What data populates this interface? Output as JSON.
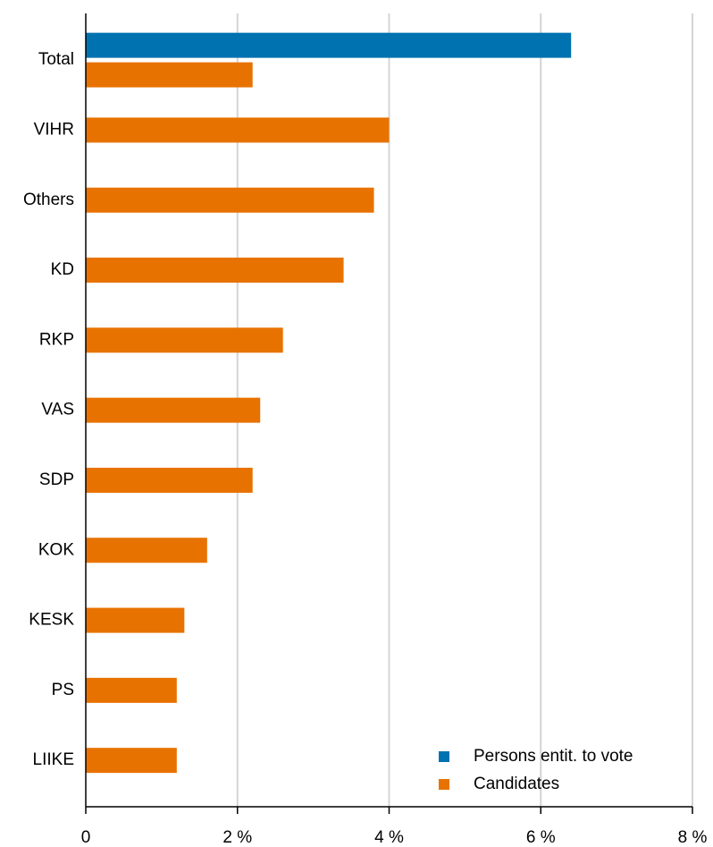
{
  "chart_data": {
    "type": "hbar",
    "categories": [
      "Total",
      "VIHR",
      "Others",
      "KD",
      "RKP",
      "VAS",
      "SDP",
      "KOK",
      "KESK",
      "PS",
      "LIIKE"
    ],
    "series": [
      {
        "name": "Persons entit. to vote",
        "color": "#0072b0",
        "values": [
          6.4,
          null,
          null,
          null,
          null,
          null,
          null,
          null,
          null,
          null,
          null
        ]
      },
      {
        "name": "Candidates",
        "color": "#e87200",
        "values": [
          2.2,
          4.0,
          3.8,
          3.4,
          2.6,
          2.3,
          2.2,
          1.6,
          1.3,
          1.2,
          1.2
        ]
      }
    ],
    "xlim": [
      0,
      8
    ],
    "xticks": [
      0,
      {
        "value": 2,
        "label": "2 %"
      },
      {
        "value": 4,
        "label": "4 %"
      },
      {
        "value": 6,
        "label": "6 %"
      },
      {
        "value": 8,
        "label": "8 %"
      }
    ],
    "grid": true,
    "legend": "bottom-right"
  }
}
